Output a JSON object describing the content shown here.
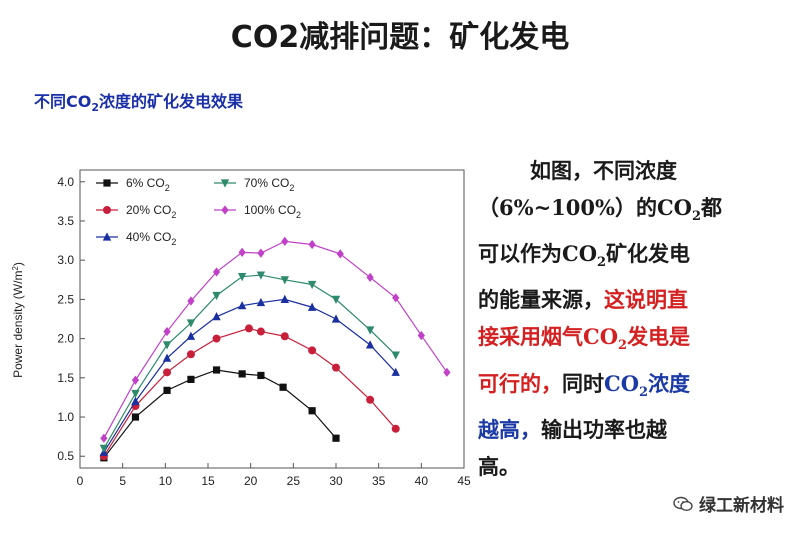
{
  "header": {
    "title": "CO2减排问题：矿化发电"
  },
  "chart_title": {
    "pre": "不同CO",
    "sub": "2",
    "post": "浓度的矿化发电效果"
  },
  "description": {
    "line1": "如图，不同浓度",
    "line2_pre": "（6%~100%）的CO",
    "line2_sub": "2",
    "line2_post": "都",
    "line3_pre": "可以作为CO",
    "line3_sub": "2",
    "line3_post": "矿化发电",
    "line4_black": "的能量来源，",
    "line4_red": "这说明直",
    "line5_pre": "接采用烟气CO",
    "line5_sub": "2",
    "line5_post": "发电是",
    "line6_red": "可行的，",
    "line6_black": "同时",
    "line6_blue_pre": "CO",
    "line6_blue_sub": "2",
    "line6_blue_post": "浓度",
    "line7_blue": "越高，",
    "line7_black": "输出功率也越",
    "line8_black": "高。"
  },
  "watermark": {
    "text": "绿工新材料",
    "icon": "wechat-icon"
  },
  "chart_data": {
    "type": "scatter",
    "xlim": [
      0,
      45
    ],
    "ylim": [
      0.35,
      4.15
    ],
    "xticks": [
      0,
      5,
      10,
      15,
      20,
      25,
      30,
      35,
      40,
      45
    ],
    "yticks": [
      0.5,
      1.0,
      1.5,
      2.0,
      2.5,
      3.0,
      3.5,
      4.0
    ],
    "xtick_labels": [
      "0",
      "5",
      "10",
      "15",
      "20",
      "25",
      "30",
      "35",
      "40",
      "45"
    ],
    "ytick_labels": [
      "0.5",
      "1.0",
      "1.5",
      "2.0",
      "2.5",
      "3.0",
      "3.5",
      "4.0"
    ],
    "ylabel_pre": "Power density (W/m",
    "ylabel_sup": "2",
    "ylabel_post": ")",
    "xlabel": "",
    "series": [
      {
        "name": "6% CO",
        "name_sub": "2",
        "color": "#111111",
        "marker": "square",
        "x": [
          2.8,
          6.5,
          10.2,
          13.0,
          16.0,
          19.0,
          21.2,
          23.8,
          27.2,
          30.0
        ],
        "y": [
          0.48,
          1.0,
          1.34,
          1.48,
          1.6,
          1.55,
          1.53,
          1.38,
          1.08,
          0.73
        ]
      },
      {
        "name": "20% CO",
        "name_sub": "2",
        "color": "#c8203a",
        "marker": "circle",
        "x": [
          2.8,
          6.5,
          10.2,
          13.0,
          16.0,
          19.8,
          21.2,
          24.0,
          27.2,
          30.0,
          34.0,
          37.0
        ],
        "y": [
          0.5,
          1.14,
          1.57,
          1.8,
          2.0,
          2.13,
          2.09,
          2.03,
          1.85,
          1.63,
          1.22,
          0.85
        ]
      },
      {
        "name": "40% CO",
        "name_sub": "2",
        "color": "#1a2fa0",
        "marker": "triangle-up",
        "x": [
          2.8,
          6.5,
          10.2,
          13.0,
          16.0,
          19.0,
          21.2,
          24.0,
          27.2,
          30.0,
          34.0,
          37.0
        ],
        "y": [
          0.55,
          1.2,
          1.75,
          2.03,
          2.28,
          2.42,
          2.46,
          2.5,
          2.4,
          2.25,
          1.92,
          1.57
        ]
      },
      {
        "name": "70% CO",
        "name_sub": "2",
        "color": "#2e8a6c",
        "marker": "triangle-down",
        "x": [
          2.8,
          6.5,
          10.2,
          13.0,
          16.0,
          19.0,
          21.2,
          24.0,
          27.2,
          30.0,
          34.0,
          37.0
        ],
        "y": [
          0.6,
          1.3,
          1.92,
          2.2,
          2.55,
          2.79,
          2.81,
          2.75,
          2.69,
          2.5,
          2.11,
          1.79
        ]
      },
      {
        "name": "100% CO",
        "name_sub": "2",
        "color": "#c040c8",
        "marker": "diamond",
        "x": [
          2.8,
          6.5,
          10.2,
          13.0,
          16.0,
          19.0,
          21.2,
          24.0,
          27.2,
          30.5,
          34.0,
          37.0,
          40.0,
          43.0
        ],
        "y": [
          0.73,
          1.47,
          2.09,
          2.48,
          2.85,
          3.1,
          3.09,
          3.24,
          3.2,
          3.08,
          2.78,
          2.52,
          2.04,
          1.57
        ]
      }
    ],
    "legend_position": "top-left",
    "grid": false
  }
}
